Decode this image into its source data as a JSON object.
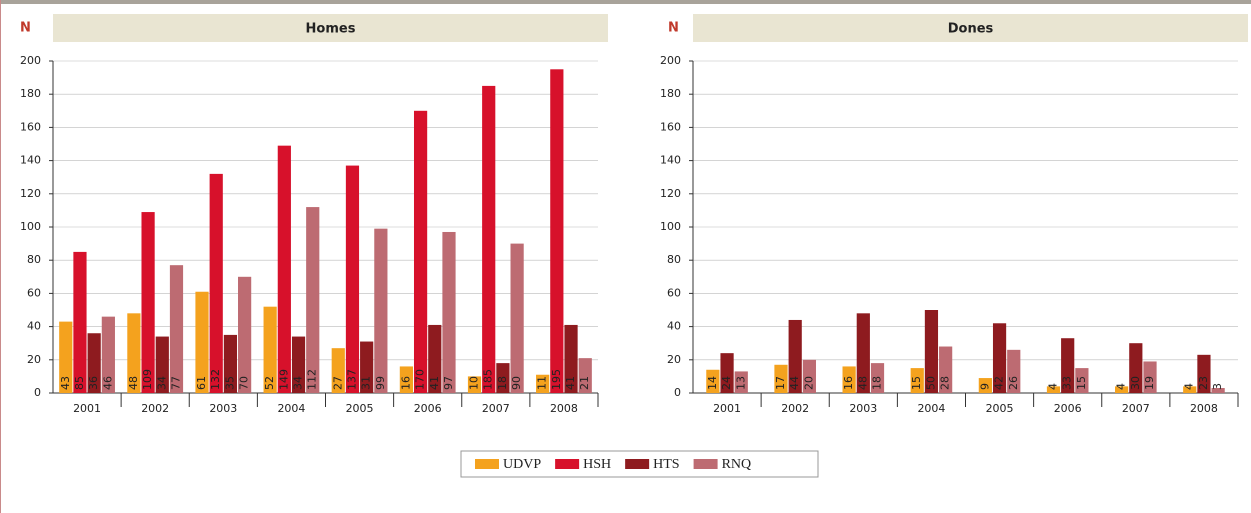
{
  "axis_symbol": "N",
  "legend": {
    "items": [
      {
        "name": "UDVP",
        "color": "#f4a21e",
        "label_color": "#222222"
      },
      {
        "name": "HSH",
        "color": "#d7112b",
        "label_color": "#ffffff"
      },
      {
        "name": "HTS",
        "color": "#8e1b1f",
        "label_color": "#222222"
      },
      {
        "name": "RNQ",
        "color": "#bd6b72",
        "label_color": "#222222"
      }
    ]
  },
  "chart_data": [
    {
      "type": "bar",
      "title": "Homes",
      "categories": [
        "2001",
        "2002",
        "2003",
        "2004",
        "2005",
        "2006",
        "2007",
        "2008"
      ],
      "series": [
        {
          "name": "UDVP",
          "values": [
            43,
            48,
            61,
            52,
            27,
            16,
            10,
            11
          ]
        },
        {
          "name": "HSH",
          "values": [
            85,
            109,
            132,
            149,
            137,
            170,
            185,
            195
          ]
        },
        {
          "name": "HTS",
          "values": [
            36,
            34,
            35,
            34,
            31,
            41,
            18,
            41
          ]
        },
        {
          "name": "RNQ",
          "values": [
            46,
            77,
            70,
            112,
            99,
            97,
            90,
            21
          ]
        }
      ],
      "ylim": [
        0,
        200
      ],
      "yticks": [
        0,
        20,
        40,
        60,
        80,
        100,
        120,
        140,
        160,
        180,
        200
      ],
      "grid": true
    },
    {
      "type": "bar",
      "title": "Dones",
      "categories": [
        "2001",
        "2002",
        "2003",
        "2004",
        "2005",
        "2006",
        "2007",
        "2008"
      ],
      "series": [
        {
          "name": "UDVP",
          "values": [
            14,
            17,
            16,
            15,
            9,
            4,
            4,
            4
          ]
        },
        {
          "name": "HTS",
          "values": [
            24,
            44,
            48,
            50,
            42,
            33,
            30,
            23
          ]
        },
        {
          "name": "RNQ",
          "values": [
            13,
            20,
            18,
            28,
            26,
            15,
            19,
            3
          ]
        }
      ],
      "ylim": [
        0,
        200
      ],
      "yticks": [
        0,
        20,
        40,
        60,
        80,
        100,
        120,
        140,
        160,
        180,
        200
      ],
      "grid": true
    }
  ]
}
